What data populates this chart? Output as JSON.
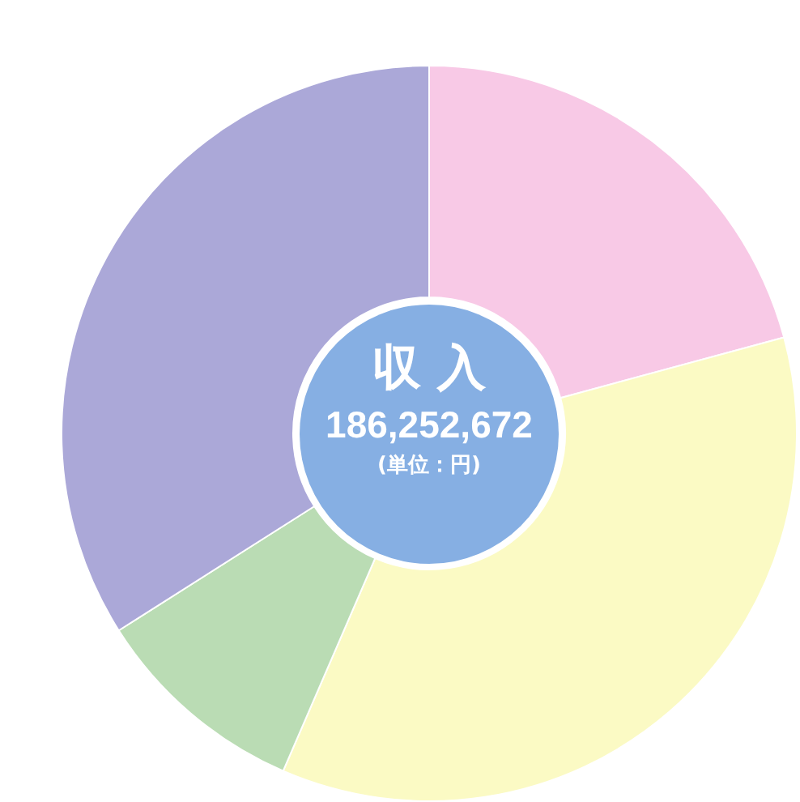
{
  "chart_data": {
    "type": "donut",
    "title": "収 入",
    "subtitle": "186,252,672",
    "annotations": [
      "(単位：円)"
    ],
    "categories": [
      null,
      null,
      null,
      null
    ],
    "values": [
      20.8,
      35.7,
      9.5,
      34.0
    ],
    "colors": [
      "#f8c9e6",
      "#fbfac4",
      "#badcb4",
      "#aba8d8"
    ],
    "legend": false
  }
}
